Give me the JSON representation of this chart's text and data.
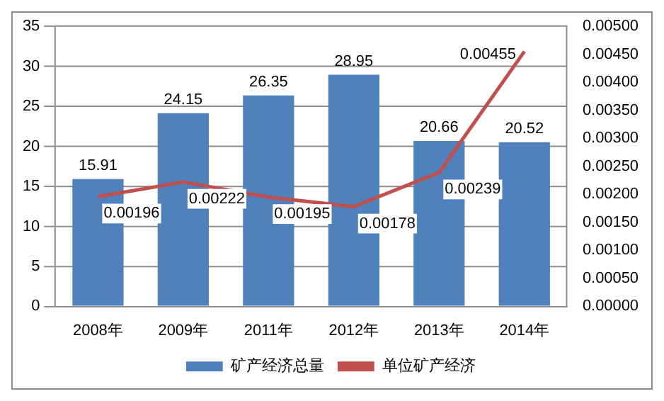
{
  "chart_data": {
    "type": "bar",
    "categories": [
      "2008年",
      "2009年",
      "2011年",
      "2012年",
      "2013年",
      "2014年"
    ],
    "series": [
      {
        "name": "矿产经济总量",
        "color": "#4f81bd",
        "values": [
          15.91,
          24.15,
          26.35,
          28.95,
          20.66,
          20.52
        ]
      },
      {
        "name": "单位矿产经济",
        "type": "line",
        "axis": "y2",
        "color": "#c0504d",
        "values": [
          0.00196,
          0.00222,
          0.00195,
          0.00178,
          0.00239,
          0.00455
        ]
      }
    ],
    "ylim": [
      0,
      35
    ],
    "yticks": [
      0,
      5,
      10,
      15,
      20,
      25,
      30,
      35
    ],
    "y2lim": [
      0,
      0.005
    ],
    "y2ticks": [
      {
        "value": 0,
        "label": "0.00000"
      },
      {
        "value": 0.0005,
        "label": "0.00050"
      },
      {
        "value": 0.001,
        "label": "0.00100"
      },
      {
        "value": 0.0015,
        "label": "0.00150"
      },
      {
        "value": 0.002,
        "label": "0.00200"
      },
      {
        "value": 0.0025,
        "label": "0.00250"
      },
      {
        "value": 0.003,
        "label": "0.00300"
      },
      {
        "value": 0.0035,
        "label": "0.00350"
      },
      {
        "value": 0.004,
        "label": "0.00400"
      },
      {
        "value": 0.0045,
        "label": "0.00450"
      },
      {
        "value": 0.005,
        "label": "0.00500"
      }
    ],
    "grid": "y",
    "legend": "bottom",
    "marker": "none",
    "data_labels": true
  }
}
